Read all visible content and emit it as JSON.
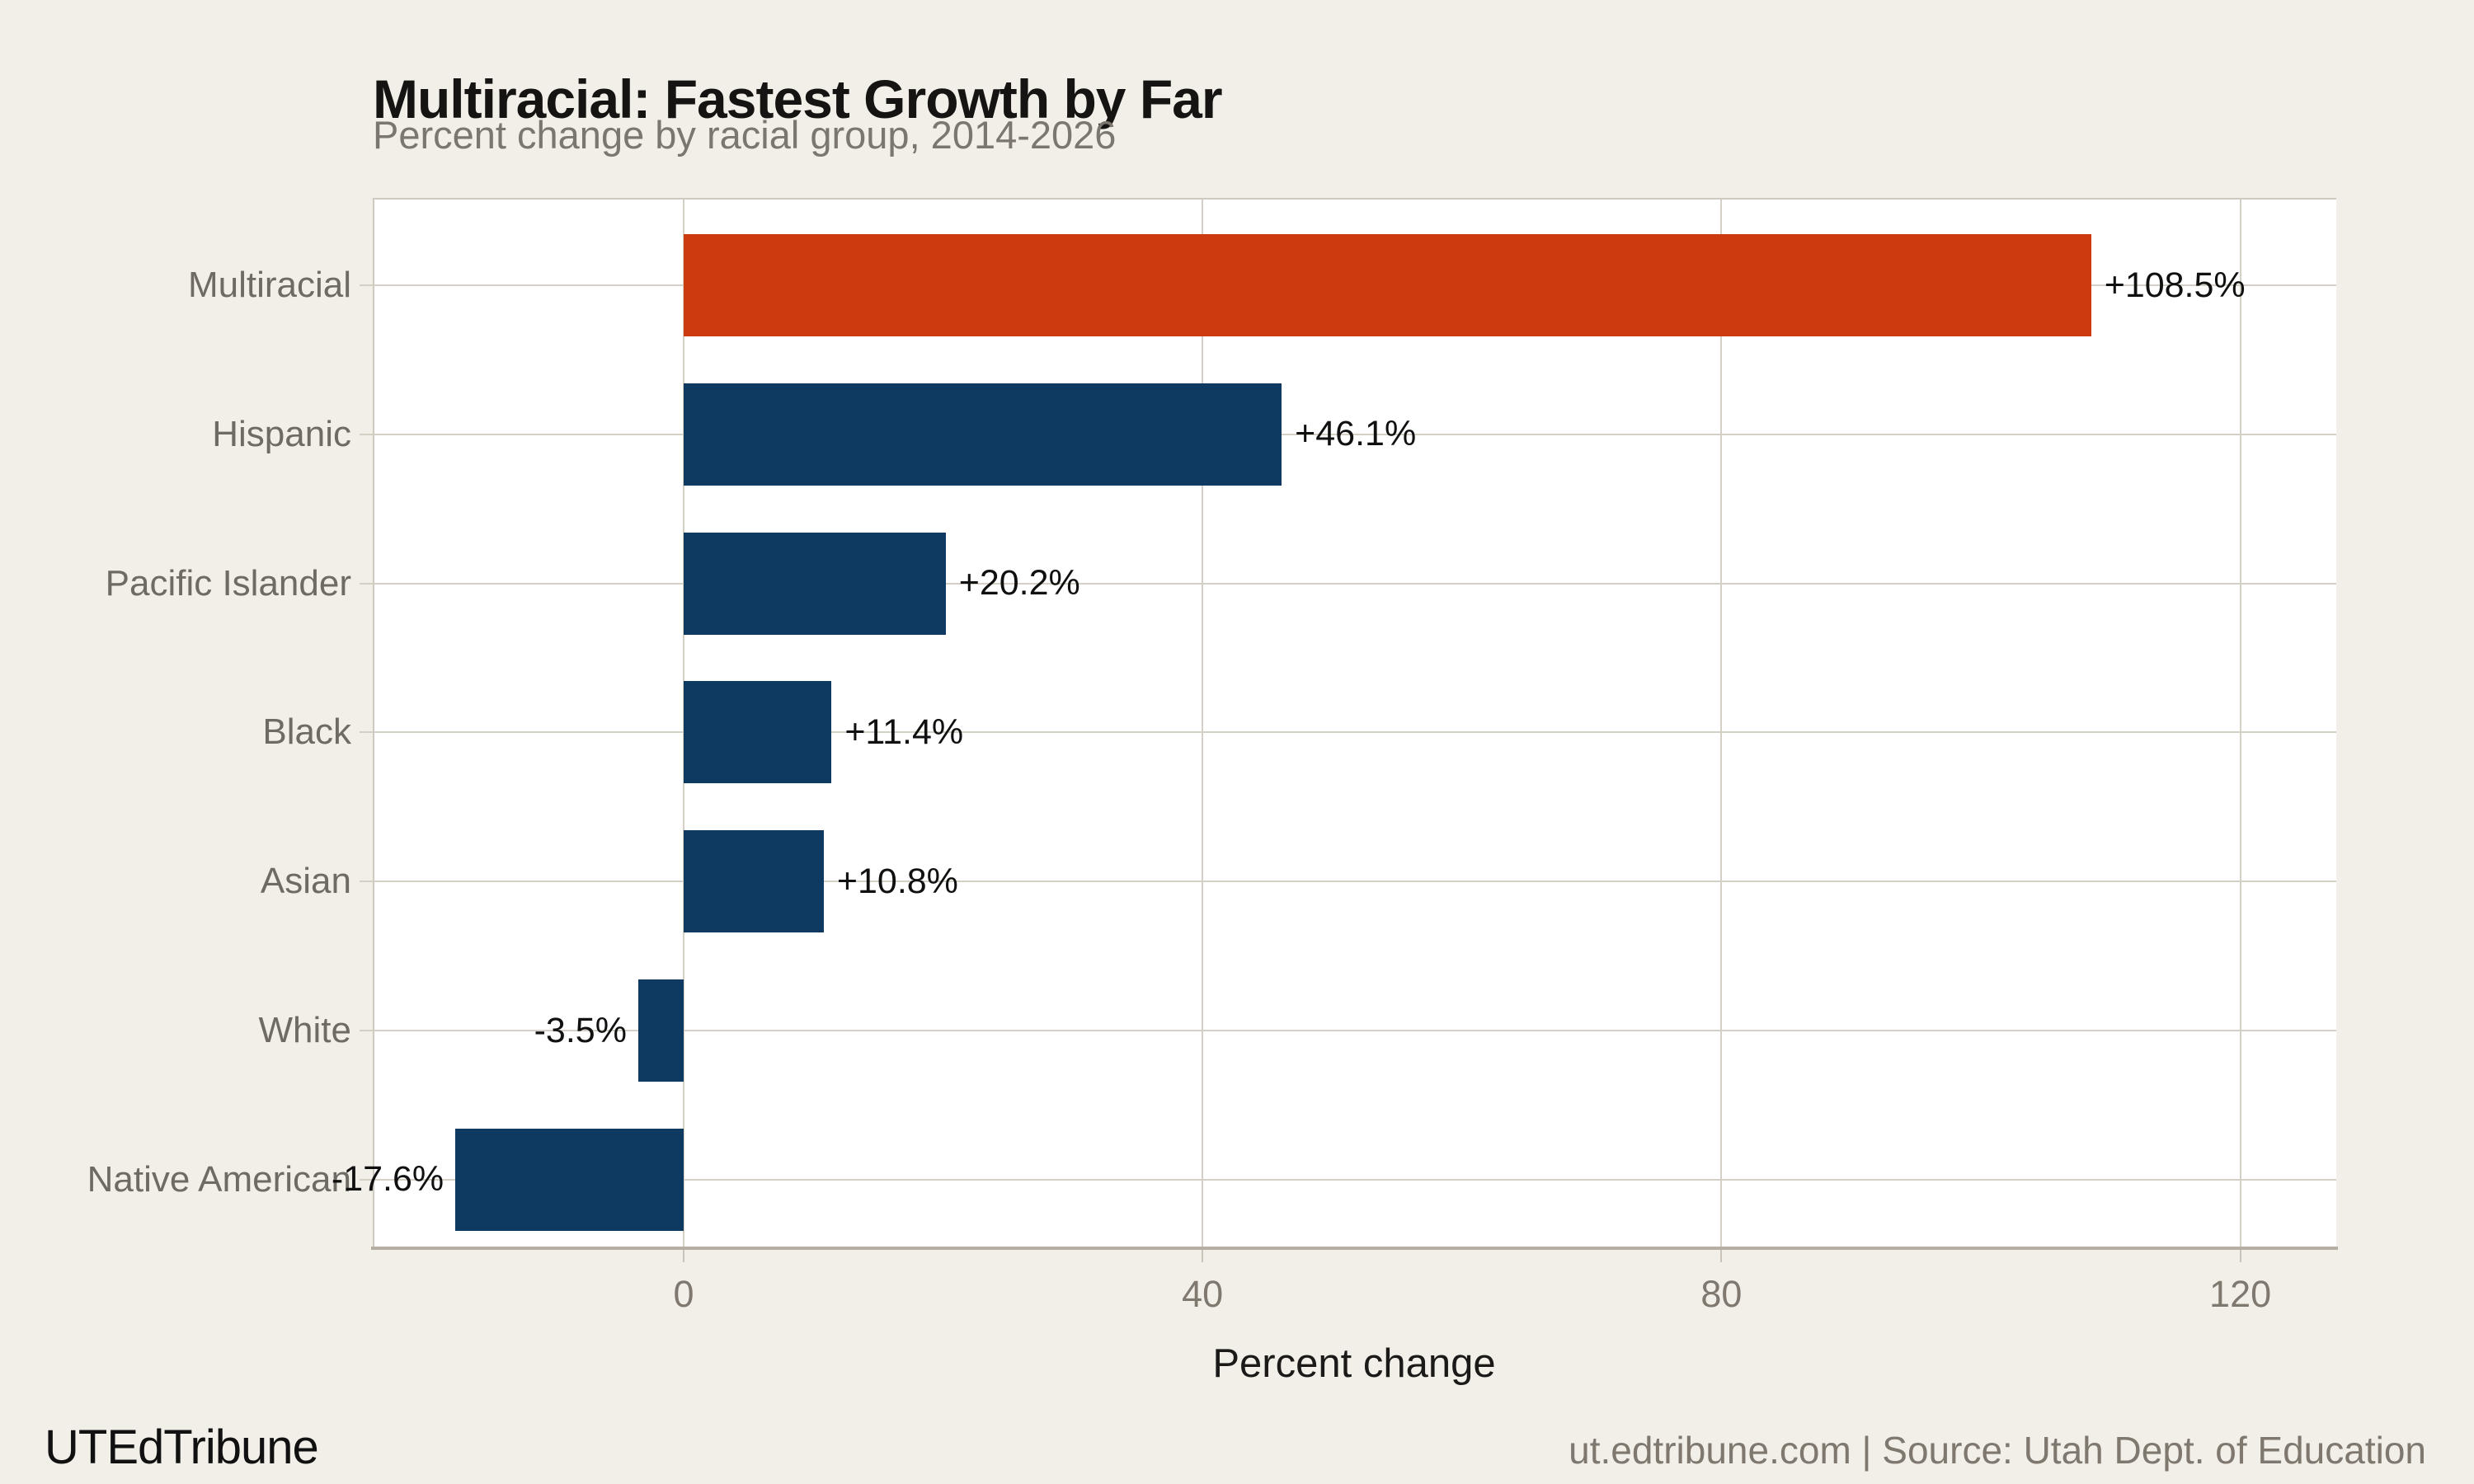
{
  "header": {
    "title": "Multiracial: Fastest Growth by Far",
    "subtitle": "Percent change by racial group, 2014-2026"
  },
  "chart_data": {
    "type": "bar",
    "orientation": "horizontal",
    "title": "Multiracial: Fastest Growth by Far",
    "subtitle": "Percent change by racial group, 2014-2026",
    "categories": [
      "Multiracial",
      "Hispanic",
      "Pacific Islander",
      "Black",
      "Asian",
      "White",
      "Native American"
    ],
    "values": [
      108.5,
      46.1,
      20.2,
      11.4,
      10.8,
      -3.5,
      -17.6
    ],
    "value_labels": [
      "+108.5%",
      "+46.1%",
      "+20.2%",
      "+11.4%",
      "+10.8%",
      "-3.5%",
      "-17.6%"
    ],
    "bar_colors": [
      "#cc3a10",
      "#0e3a62",
      "#0e3a62",
      "#0e3a62",
      "#0e3a62",
      "#0e3a62",
      "#0e3a62"
    ],
    "highlight_category": "Multiracial",
    "highlight_color": "#cc3a10",
    "base_color": "#0e3a62",
    "xlabel": "Percent change",
    "x_ticks": [
      0,
      40,
      80,
      120
    ],
    "x_tick_labels": [
      "0",
      "40",
      "80",
      "120"
    ],
    "xlim": [
      -24,
      127.5
    ],
    "grid": "on",
    "legend": "none",
    "panel_background": "#ffffff"
  },
  "footer": {
    "brand": "UTEdTribune",
    "source": "ut.edtribune.com | Source: Utah Dept. of Education"
  },
  "colors": {
    "page_background": "#f2efe8",
    "panel_background": "#ffffff",
    "gridline": "#d5d0c6",
    "axis_line": "#b5aea3",
    "title_text": "#161412",
    "subtitle_text": "#7b766e",
    "category_text": "#6f6a63",
    "tick_text": "#7e786f",
    "value_text": "#101010",
    "bar_navy": "#0e3a62",
    "bar_orange": "#cc3a10"
  }
}
